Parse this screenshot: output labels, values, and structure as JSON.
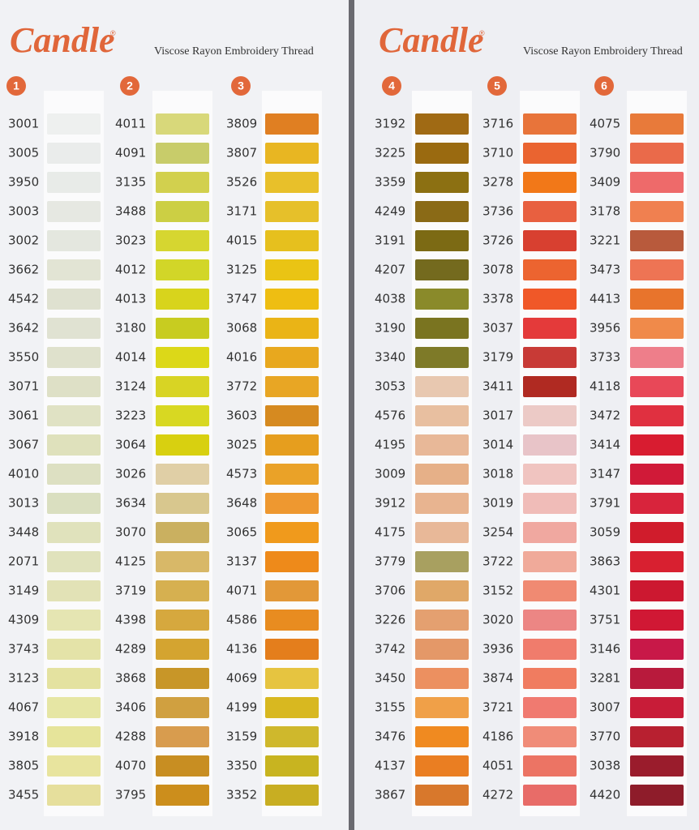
{
  "panels": [
    {
      "brand": "Candle",
      "mark": "®",
      "subtitle": "Viscose Rayon Embroidery Thread"
    },
    {
      "brand": "Candle",
      "mark": "®",
      "subtitle": "Viscose Rayon Embroidery Thread"
    }
  ],
  "columns": [
    {
      "number": "1",
      "codes": [
        "3001",
        "3005",
        "3950",
        "3003",
        "3002",
        "3662",
        "4542",
        "3642",
        "3550",
        "3071",
        "3061",
        "3067",
        "4010",
        "3013",
        "3448",
        "2071",
        "3149",
        "4309",
        "3743",
        "3123",
        "4067",
        "3918",
        "3805",
        "3455"
      ],
      "colors": [
        "#eef0ef",
        "#eaeceb",
        "#e8ebe8",
        "#e6e8e2",
        "#e4e7df",
        "#e2e4d4",
        "#dfe1d0",
        "#e0e2d2",
        "#dfe1cc",
        "#dee0c6",
        "#e0e2c4",
        "#dfe1bc",
        "#dde0c2",
        "#dadfc0",
        "#e0e2bc",
        "#e0e2bc",
        "#e2e2b6",
        "#e5e5b2",
        "#e4e3a8",
        "#e4e2a0",
        "#e6e6a4",
        "#e6e49a",
        "#e8e49e",
        "#e6df9c"
      ]
    },
    {
      "number": "2",
      "codes": [
        "4011",
        "4091",
        "3135",
        "3488",
        "3023",
        "4012",
        "4013",
        "3180",
        "4014",
        "3124",
        "3223",
        "3064",
        "3026",
        "3634",
        "3070",
        "4125",
        "3719",
        "4398",
        "4289",
        "3868",
        "3406",
        "4288",
        "4070",
        "3795"
      ],
      "colors": [
        "#d8d87a",
        "#c8cc6a",
        "#d2d04e",
        "#cccf44",
        "#d6d630",
        "#d2d628",
        "#d8d41c",
        "#c8cc20",
        "#dcd818",
        "#d8d424",
        "#d8d822",
        "#d8d010",
        "#e0cfa6",
        "#d8c78e",
        "#cab060",
        "#d8b868",
        "#d6b050",
        "#d6a83e",
        "#d4a430",
        "#c89628",
        "#d0a040",
        "#d89c4e",
        "#c88e22",
        "#cc8e1c"
      ]
    },
    {
      "number": "3",
      "codes": [
        "3809",
        "3807",
        "3526",
        "3171",
        "4015",
        "3125",
        "3747",
        "3068",
        "4016",
        "3772",
        "3603",
        "3025",
        "4573",
        "3648",
        "3065",
        "3137",
        "4071",
        "4586",
        "4136",
        "4069",
        "4199",
        "3159",
        "3350",
        "3352"
      ],
      "colors": [
        "#e07f22",
        "#e8b622",
        "#e8c02a",
        "#e6c02a",
        "#e6c01e",
        "#eac414",
        "#eebe12",
        "#eab416",
        "#e8a81e",
        "#e8a624",
        "#d68a20",
        "#e69e1e",
        "#eaa228",
        "#ee9830",
        "#f09a1c",
        "#ee8a1a",
        "#e29838",
        "#e88c20",
        "#e47e1c",
        "#e6c440",
        "#d8b820",
        "#cfb82c",
        "#c8b420",
        "#c8ae22"
      ]
    },
    {
      "number": "4",
      "codes": [
        "3192",
        "3225",
        "3359",
        "4249",
        "3191",
        "4207",
        "4038",
        "3190",
        "3340",
        "3053",
        "4576",
        "4195",
        "3009",
        "3912",
        "4175",
        "3779",
        "3706",
        "3226",
        "3742",
        "3450",
        "3155",
        "3476",
        "4137",
        "3867"
      ],
      "colors": [
        "#a06a14",
        "#9a6a10",
        "#8c7012",
        "#8a6a16",
        "#7c6a14",
        "#746a1e",
        "#8a8a2a",
        "#7a7420",
        "#7e7a28",
        "#e8c8b0",
        "#e8bfa0",
        "#e8b898",
        "#e6b088",
        "#e8b490",
        "#e8b898",
        "#a8a060",
        "#e0a868",
        "#e4a070",
        "#e49868",
        "#ec9060",
        "#f0a048",
        "#f08a20",
        "#ea7e22",
        "#d8782c"
      ]
    },
    {
      "number": "5",
      "codes": [
        "3716",
        "3710",
        "3278",
        "3736",
        "3726",
        "3078",
        "3378",
        "3037",
        "3179",
        "3411",
        "3017",
        "3014",
        "3018",
        "3019",
        "3254",
        "3722",
        "3152",
        "3020",
        "3936",
        "3874",
        "3721",
        "4186",
        "4051",
        "4272"
      ],
      "colors": [
        "#e8743a",
        "#ea6430",
        "#f27818",
        "#e86040",
        "#d84030",
        "#ec6430",
        "#f05828",
        "#e43a3a",
        "#c83a36",
        "#b02a22",
        "#eccac6",
        "#e8c4c8",
        "#f0c4c0",
        "#f0bcb8",
        "#f0a8a0",
        "#f0aa9a",
        "#f08a72",
        "#ec8684",
        "#f07c6c",
        "#f07c60",
        "#f07a70",
        "#f08c78",
        "#ec7464",
        "#e86c68"
      ]
    },
    {
      "number": "6",
      "codes": [
        "4075",
        "3790",
        "3409",
        "3178",
        "3221",
        "3473",
        "4413",
        "3956",
        "3733",
        "4118",
        "3472",
        "3414",
        "3147",
        "3791",
        "3059",
        "3863",
        "4301",
        "3751",
        "3146",
        "3281",
        "3007",
        "3770",
        "3038",
        "4420"
      ],
      "colors": [
        "#e87a3a",
        "#ea6a4a",
        "#ee6a6a",
        "#f08050",
        "#b85a3c",
        "#ee7454",
        "#e8742c",
        "#f08a4a",
        "#ee7e8a",
        "#e84858",
        "#e03040",
        "#d81c30",
        "#d01a38",
        "#d8243c",
        "#d01c2c",
        "#d82030",
        "#cc1830",
        "#d01834",
        "#c81848",
        "#b81a3c",
        "#c81c38",
        "#b82030",
        "#9a1c2c",
        "#8e1c2a"
      ]
    }
  ]
}
